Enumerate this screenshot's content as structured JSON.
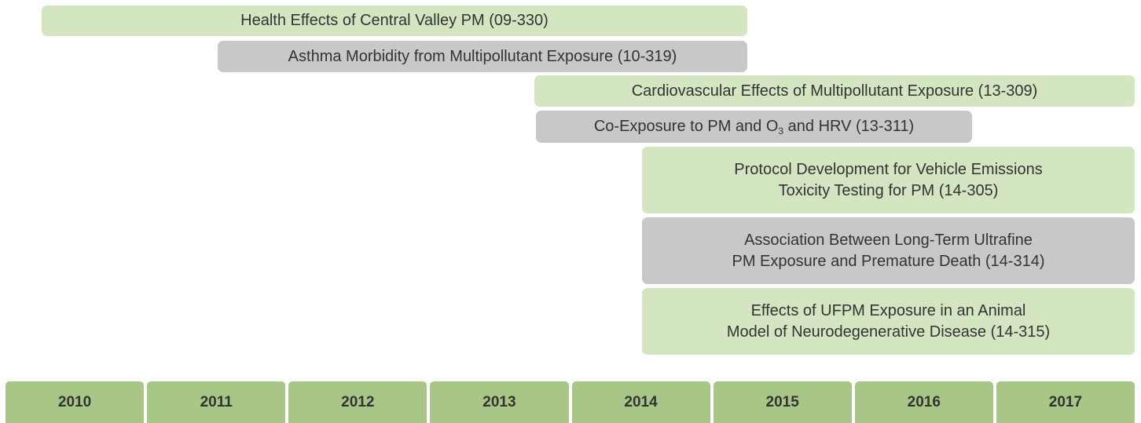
{
  "bars": [
    {
      "lines": [
        "Health Effects of Central Valley PM (09-330)"
      ]
    },
    {
      "lines": [
        "Asthma Morbidity from Multipollutant Exposure (10-319)"
      ]
    },
    {
      "lines": [
        "Cardiovascular Effects of Multipollutant Exposure (13-309)"
      ]
    },
    {
      "parts": [
        "Co-Exposure to PM and O",
        "3",
        " and HRV (13-311)"
      ]
    },
    {
      "lines": [
        "Protocol Development for Vehicle Emissions",
        "Toxicity Testing for PM (14-305)"
      ]
    },
    {
      "lines": [
        "Association Between Long-Term Ultrafine",
        "PM Exposure and Premature Death (14-314)"
      ]
    },
    {
      "lines": [
        "Effects of UFPM Exposure in an Animal",
        "Model of Neurodegenerative Disease (14-315)"
      ]
    }
  ],
  "years": [
    "2010",
    "2011",
    "2012",
    "2013",
    "2014",
    "2015",
    "2016",
    "2017"
  ]
}
